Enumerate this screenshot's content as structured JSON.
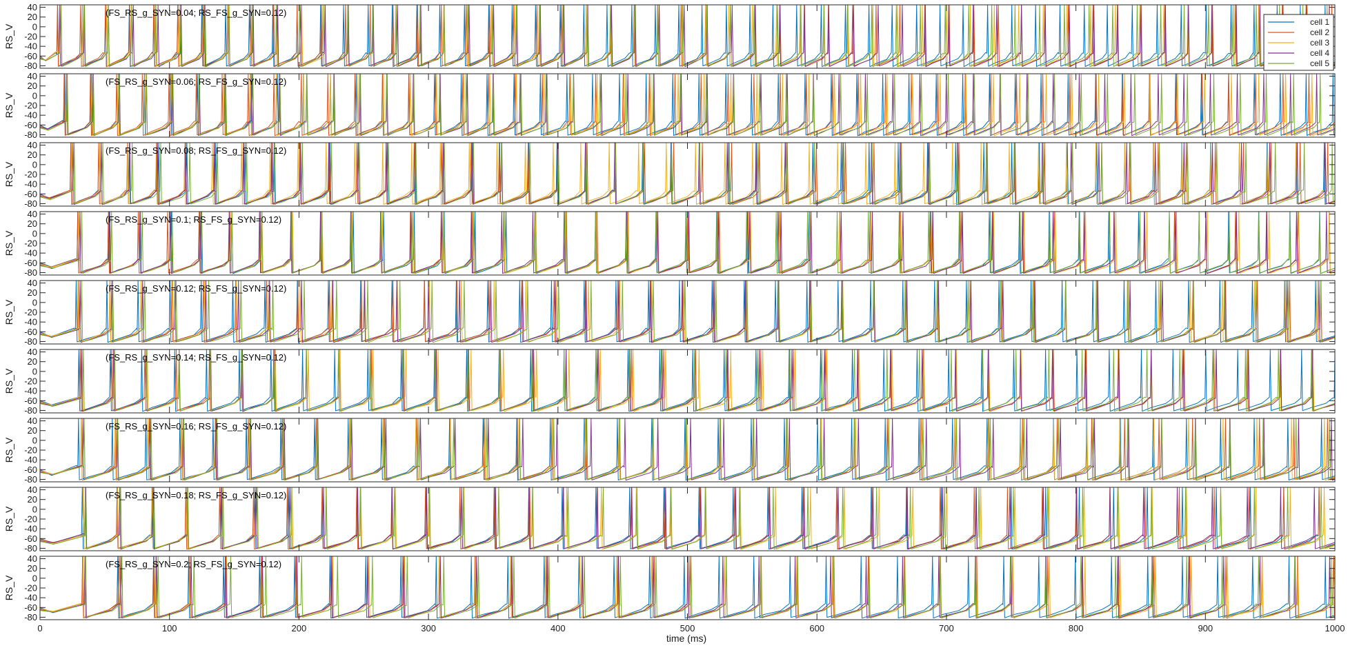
{
  "chart_data": {
    "type": "line",
    "xlabel": "time (ms)",
    "ylabel": "RS_V",
    "xlim": [
      0,
      1000
    ],
    "ylim": [
      -85,
      45
    ],
    "x_ticks": [
      0,
      100,
      200,
      300,
      400,
      500,
      600,
      700,
      800,
      900,
      1000
    ],
    "y_ticks": [
      40,
      20,
      0,
      -20,
      -40,
      -60,
      -80
    ],
    "legend_position": "top-right",
    "series": [
      {
        "name": "cell 1",
        "color": "#0072BD"
      },
      {
        "name": "cell 2",
        "color": "#D95319"
      },
      {
        "name": "cell 3",
        "color": "#EDB120"
      },
      {
        "name": "cell 4",
        "color": "#7E2F8E"
      },
      {
        "name": "cell 5",
        "color": "#77AC30"
      }
    ],
    "panels": [
      {
        "title": "(FS_RS_g_SYN=0.04; RS_FS_g_SYN=0.12)",
        "fs_rs_g_syn": 0.04,
        "rs_fs_g_syn": 0.12,
        "first_spike_ms": 15,
        "isi_ms": 18.5
      },
      {
        "title": "(FS_RS_g_SYN=0.06; RS_FS_g_SYN=0.12)",
        "fs_rs_g_syn": 0.06,
        "rs_fs_g_syn": 0.12,
        "first_spike_ms": 20,
        "isi_ms": 20.5
      },
      {
        "title": "(FS_RS_g_SYN=0.08; RS_FS_g_SYN=0.12)",
        "fs_rs_g_syn": 0.08,
        "rs_fs_g_syn": 0.12,
        "first_spike_ms": 25,
        "isi_ms": 22
      },
      {
        "title": "(FS_RS_g_SYN=0.1; RS_FS_g_SYN=0.12)",
        "fs_rs_g_syn": 0.1,
        "rs_fs_g_syn": 0.12,
        "first_spike_ms": 30,
        "isi_ms": 23.5
      },
      {
        "title": "(FS_RS_g_SYN=0.12; RS_FS_g_SYN=0.12)",
        "fs_rs_g_syn": 0.12,
        "rs_fs_g_syn": 0.12,
        "first_spike_ms": 30,
        "isi_ms": 24.5
      },
      {
        "title": "(FS_RS_g_SYN=0.14; RS_FS_g_SYN=0.12)",
        "fs_rs_g_syn": 0.14,
        "rs_fs_g_syn": 0.12,
        "first_spike_ms": 32,
        "isi_ms": 25
      },
      {
        "title": "(FS_RS_g_SYN=0.16; RS_FS_g_SYN=0.12)",
        "fs_rs_g_syn": 0.16,
        "rs_fs_g_syn": 0.12,
        "first_spike_ms": 32,
        "isi_ms": 26
      },
      {
        "title": "(FS_RS_g_SYN=0.18; RS_FS_g_SYN=0.12)",
        "fs_rs_g_syn": 0.18,
        "rs_fs_g_syn": 0.12,
        "first_spike_ms": 34,
        "isi_ms": 26.5
      },
      {
        "title": "(FS_RS_g_SYN=0.2; RS_FS_g_SYN=0.12)",
        "fs_rs_g_syn": 0.2,
        "rs_fs_g_syn": 0.12,
        "first_spike_ms": 34,
        "isi_ms": 27.5
      }
    ]
  }
}
